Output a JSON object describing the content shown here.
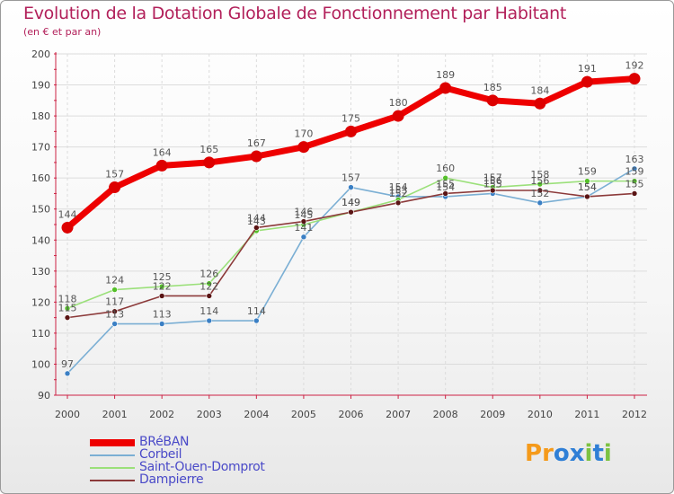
{
  "title": "Evolution de la Dotation Globale de Fonctionnement par Habitant",
  "subtitle": "(en € et par an)",
  "logo": {
    "text": "Proxiti",
    "letters": [
      "P",
      "r",
      "o",
      "x",
      "i",
      "t",
      "i"
    ],
    "colors": [
      "#f59a1a",
      "#f59a1a",
      "#2f7fd6",
      "#2f7fd6",
      "#7cc242",
      "#2f7fd6",
      "#7cc242"
    ]
  },
  "chart_data": {
    "type": "line",
    "title": "Evolution de la Dotation Globale de Fonctionnement par Habitant",
    "subtitle": "(en € et par an)",
    "xlabel": "",
    "ylabel": "",
    "ylim": [
      90,
      200
    ],
    "yticks": [
      90,
      100,
      110,
      120,
      130,
      140,
      150,
      160,
      170,
      180,
      190,
      200
    ],
    "grid": true,
    "legend_position": "bottom-left",
    "categories": [
      "2000",
      "2001",
      "2002",
      "2003",
      "2004",
      "2005",
      "2006",
      "2007",
      "2008",
      "2009",
      "2010",
      "2011",
      "2012"
    ],
    "series": [
      {
        "name": "BRéBAN",
        "color": "#ee0000",
        "markerColor": "#dd0000",
        "emphasis": true,
        "values": [
          144,
          157,
          164,
          165,
          167,
          170,
          175,
          180,
          189,
          185,
          184,
          191,
          192
        ],
        "labels": [
          "144",
          "157",
          "164",
          "165",
          "167",
          "170",
          "175",
          "180",
          "189",
          "185",
          "184",
          "191",
          "192"
        ]
      },
      {
        "name": "Corbeil",
        "color": "#7bafd4",
        "markerColor": "#3a7fc4",
        "values": [
          97,
          113,
          113,
          114,
          114,
          141,
          157,
          154,
          154,
          155,
          152,
          154,
          163
        ],
        "labels": [
          "97",
          "113",
          "113",
          "114",
          "114",
          "141",
          "157",
          "154",
          "154",
          "155",
          "152",
          "154",
          "163"
        ]
      },
      {
        "name": "Saint-Ouen-Domprot",
        "color": "#9be07a",
        "markerColor": "#55c02a",
        "values": [
          118,
          124,
          125,
          126,
          143,
          145,
          149,
          153,
          160,
          157,
          158,
          159,
          159
        ],
        "labels": [
          "118",
          "124",
          "125",
          "126",
          "143",
          "145",
          "149",
          "153",
          "160",
          "157",
          "158",
          "159",
          "159"
        ]
      },
      {
        "name": "Dampierre",
        "color": "#8c3a3a",
        "markerColor": "#5a1414",
        "values": [
          115,
          117,
          122,
          122,
          144,
          146,
          149,
          152,
          155,
          156,
          156,
          154,
          155
        ],
        "labels": [
          "115",
          "117",
          "122",
          "122",
          "144",
          "146",
          "149",
          "152",
          "155",
          "156",
          "156",
          "154",
          "155"
        ]
      }
    ]
  }
}
